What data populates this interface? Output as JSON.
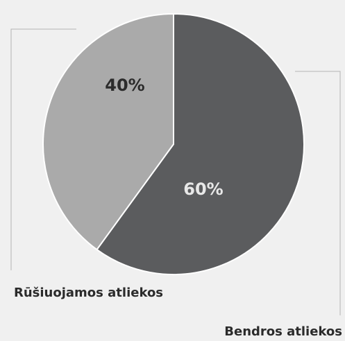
{
  "chart_data": {
    "type": "pie",
    "title": "",
    "legend": "labels-with-leader-lines",
    "slices": [
      {
        "name": "Bendros atliekos",
        "value": 60,
        "label": "60%",
        "color": "#5b5c5e",
        "label_color": "#e8e8e8"
      },
      {
        "name": "Rūšiuojamos atliekos",
        "value": 40,
        "label": "40%",
        "color": "#aaaaaa",
        "label_color": "#2b2b2b"
      }
    ]
  }
}
